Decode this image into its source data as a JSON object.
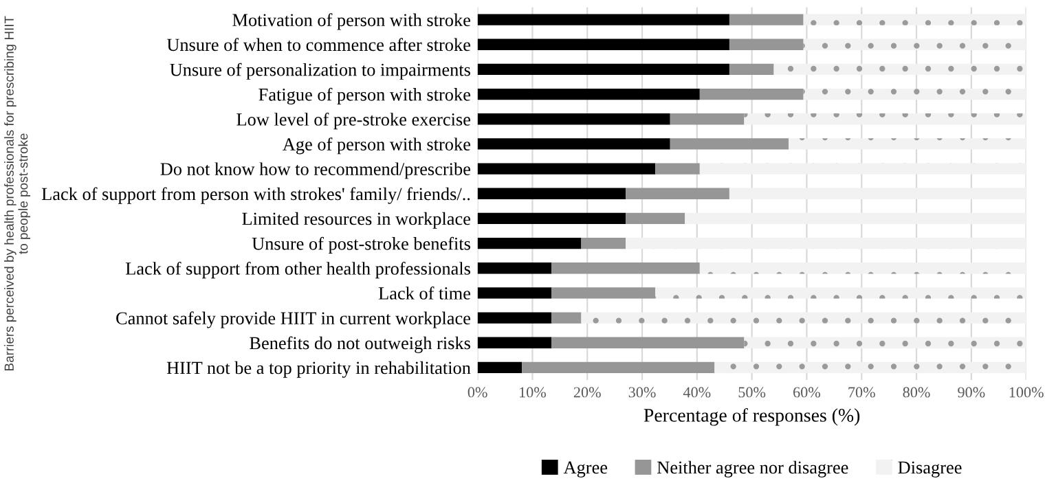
{
  "chart_data": {
    "type": "bar",
    "orientation": "horizontal",
    "stacked": true,
    "ylabel": "Barriers perceived by health professionals for prescribing HIIT\nto people post-stroke",
    "xlabel": "Percentage of responses (%)",
    "categories": [
      "Motivation of person with stroke",
      "Unsure of when to commence after stroke",
      "Unsure of personalization to impairments",
      "Fatigue of person with stroke",
      "Low level of pre-stroke exercise",
      "Age of person with stroke",
      "Do not know how to recommend/prescribe",
      "Lack of support from person with strokes' family/ friends/..",
      "Limited resources in workplace",
      "Unsure of post-stroke benefits",
      "Lack of support from other health professionals",
      "Lack of time",
      "Cannot safely provide HIIT in current workplace",
      "Benefits do not outweigh risks",
      "HIIT not be a top priority in rehabilitation"
    ],
    "series": [
      {
        "name": "Agree",
        "color": "#000000",
        "values": [
          45.9,
          45.9,
          45.9,
          40.5,
          35.1,
          35.1,
          32.4,
          27.0,
          27.0,
          18.9,
          13.5,
          13.5,
          13.5,
          13.5,
          8.1
        ]
      },
      {
        "name": "Neither agree nor disagree",
        "color": "#969696",
        "values": [
          13.5,
          13.5,
          8.1,
          18.9,
          13.5,
          21.6,
          8.1,
          18.9,
          10.8,
          8.1,
          27.0,
          18.9,
          5.4,
          35.1,
          35.1
        ]
      },
      {
        "name": "Disagree",
        "color": "#f2f2f2",
        "values": [
          40.6,
          40.6,
          46.0,
          40.6,
          51.4,
          43.3,
          59.5,
          54.1,
          62.2,
          73.0,
          59.5,
          67.6,
          81.1,
          51.4,
          56.8
        ]
      }
    ],
    "xlim": [
      0,
      100
    ],
    "xticks": [
      {
        "value": 0,
        "label": "0%"
      },
      {
        "value": 10,
        "label": "10%"
      },
      {
        "value": 20,
        "label": "20%"
      },
      {
        "value": 30,
        "label": "30%"
      },
      {
        "value": 40,
        "label": "40%"
      },
      {
        "value": 50,
        "label": "50%"
      },
      {
        "value": 60,
        "label": "60%"
      },
      {
        "value": 70,
        "label": "70%"
      },
      {
        "value": 80,
        "label": "80%"
      },
      {
        "value": 90,
        "label": "90%"
      },
      {
        "value": 100,
        "label": "100%"
      }
    ],
    "grid": "x",
    "legend": "bottom"
  }
}
